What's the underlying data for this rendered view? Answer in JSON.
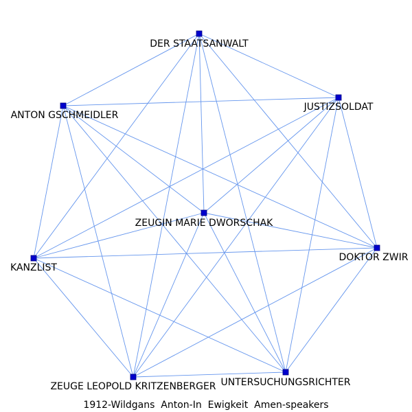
{
  "caption": "1912-Wildgans  Anton-In  Ewigkeit  Amen-speakers",
  "colors": {
    "edge": "#6495ed",
    "node": "#0000cd",
    "label": "#000000"
  },
  "nodes": [
    {
      "id": "staatsanwalt",
      "label": "DER STAATSANWALT"
    },
    {
      "id": "justizsoldat",
      "label": "JUSTIZSOLDAT"
    },
    {
      "id": "gschmeidler",
      "label": "ANTON GSCHMEIDLER"
    },
    {
      "id": "dworschak",
      "label": "ZEUGIN MARIE DWORSCHAK"
    },
    {
      "id": "zwir",
      "label": "DOKTOR ZWIR"
    },
    {
      "id": "kanzlist",
      "label": "KANZLIST"
    },
    {
      "id": "kritzenberger",
      "label": "ZEUGE LEOPOLD KRITZENBERGER"
    },
    {
      "id": "untersuchungsrichter",
      "label": "UNTERSUCHUNGSRICHTER"
    }
  ],
  "edges": [
    [
      "staatsanwalt",
      "justizsoldat"
    ],
    [
      "staatsanwalt",
      "gschmeidler"
    ],
    [
      "staatsanwalt",
      "dworschak"
    ],
    [
      "staatsanwalt",
      "zwir"
    ],
    [
      "staatsanwalt",
      "kanzlist"
    ],
    [
      "staatsanwalt",
      "kritzenberger"
    ],
    [
      "staatsanwalt",
      "untersuchungsrichter"
    ],
    [
      "justizsoldat",
      "gschmeidler"
    ],
    [
      "justizsoldat",
      "dworschak"
    ],
    [
      "justizsoldat",
      "zwir"
    ],
    [
      "justizsoldat",
      "kanzlist"
    ],
    [
      "justizsoldat",
      "kritzenberger"
    ],
    [
      "justizsoldat",
      "untersuchungsrichter"
    ],
    [
      "gschmeidler",
      "dworschak"
    ],
    [
      "gschmeidler",
      "zwir"
    ],
    [
      "gschmeidler",
      "kanzlist"
    ],
    [
      "gschmeidler",
      "kritzenberger"
    ],
    [
      "gschmeidler",
      "untersuchungsrichter"
    ],
    [
      "dworschak",
      "zwir"
    ],
    [
      "dworschak",
      "kanzlist"
    ],
    [
      "dworschak",
      "kritzenberger"
    ],
    [
      "dworschak",
      "untersuchungsrichter"
    ],
    [
      "zwir",
      "kanzlist"
    ],
    [
      "zwir",
      "kritzenberger"
    ],
    [
      "zwir",
      "untersuchungsrichter"
    ],
    [
      "kanzlist",
      "kritzenberger"
    ],
    [
      "kanzlist",
      "untersuchungsrichter"
    ],
    [
      "kritzenberger",
      "untersuchungsrichter"
    ]
  ]
}
